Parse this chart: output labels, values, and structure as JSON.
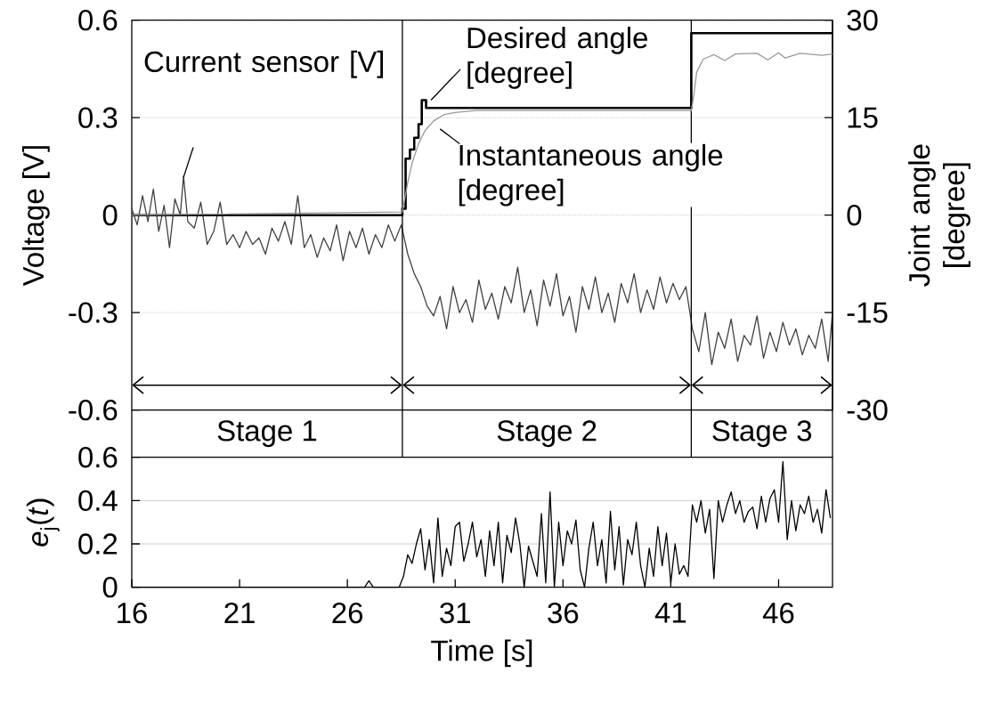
{
  "chart_data": [
    {
      "type": "line",
      "ylabel": "Voltage [V]",
      "y2label": "Joint angle [degree]",
      "xlim": [
        16,
        48.5
      ],
      "ylim": [
        -0.6,
        0.6
      ],
      "yticks": [
        0.6,
        0.3,
        0,
        -0.3,
        -0.6
      ],
      "y2lim": [
        -30,
        30
      ],
      "y2ticks": [
        30,
        15,
        0,
        -15,
        -30
      ],
      "tick_labels": "y",
      "grid": "y",
      "ref_lines": [
        {
          "axis": "x",
          "value": 28.55,
          "color": "#000000"
        },
        {
          "axis": "x",
          "value": 41.95,
          "color": "#000000"
        }
      ],
      "annotations": [
        "Current sensor [V]",
        "Desired angle [degree]",
        "Instantaneous angle [degree]",
        "Stage 1",
        "Stage 2",
        "Stage 3"
      ],
      "series": [
        {
          "color": "#404040",
          "x": [
            16.0,
            16.25,
            16.5,
            16.75,
            17.0,
            17.25,
            17.5,
            17.75,
            18.0,
            18.25,
            18.4,
            18.6,
            18.9,
            19.2,
            19.5,
            19.8,
            20.1,
            20.4,
            20.7,
            21.0,
            21.3,
            21.6,
            21.9,
            22.2,
            22.5,
            22.8,
            23.1,
            23.4,
            23.7,
            24.0,
            24.3,
            24.6,
            24.9,
            25.2,
            25.5,
            25.8,
            26.1,
            26.4,
            26.7,
            27.0,
            27.3,
            27.6,
            27.9,
            28.2,
            28.5,
            28.8,
            29.1,
            29.4,
            29.7,
            30.0,
            30.3,
            30.6,
            30.9,
            31.2,
            31.5,
            31.8,
            32.1,
            32.4,
            32.7,
            33.0,
            33.3,
            33.6,
            33.9,
            34.2,
            34.5,
            34.8,
            35.1,
            35.4,
            35.7,
            36.0,
            36.3,
            36.6,
            36.9,
            37.2,
            37.5,
            37.8,
            38.1,
            38.4,
            38.7,
            39.0,
            39.3,
            39.6,
            39.9,
            40.2,
            40.5,
            40.8,
            41.1,
            41.4,
            41.7,
            42.0,
            42.3,
            42.6,
            42.9,
            43.2,
            43.5,
            43.8,
            44.1,
            44.4,
            44.7,
            45.0,
            45.3,
            45.6,
            45.9,
            46.2,
            46.5,
            46.8,
            47.1,
            47.4,
            47.7,
            48.0,
            48.3,
            48.5
          ],
          "values": [
            0.02,
            -0.03,
            0.06,
            -0.02,
            0.08,
            -0.05,
            0.03,
            -0.1,
            0.05,
            0.0,
            0.12,
            -0.02,
            -0.04,
            0.04,
            -0.09,
            -0.05,
            0.04,
            -0.09,
            -0.06,
            -0.1,
            -0.05,
            -0.09,
            -0.07,
            -0.12,
            -0.04,
            -0.08,
            -0.02,
            -0.09,
            0.06,
            -0.1,
            -0.06,
            -0.13,
            -0.07,
            -0.11,
            -0.03,
            -0.14,
            -0.05,
            -0.1,
            -0.04,
            -0.12,
            -0.06,
            -0.1,
            -0.03,
            -0.08,
            -0.03,
            -0.12,
            -0.18,
            -0.22,
            -0.28,
            -0.31,
            -0.25,
            -0.35,
            -0.22,
            -0.3,
            -0.26,
            -0.33,
            -0.2,
            -0.29,
            -0.24,
            -0.32,
            -0.22,
            -0.27,
            -0.16,
            -0.3,
            -0.23,
            -0.34,
            -0.2,
            -0.28,
            -0.18,
            -0.31,
            -0.25,
            -0.36,
            -0.22,
            -0.29,
            -0.19,
            -0.3,
            -0.24,
            -0.33,
            -0.21,
            -0.27,
            -0.18,
            -0.3,
            -0.23,
            -0.29,
            -0.19,
            -0.27,
            -0.21,
            -0.26,
            -0.22,
            -0.35,
            -0.42,
            -0.3,
            -0.46,
            -0.36,
            -0.41,
            -0.32,
            -0.45,
            -0.37,
            -0.4,
            -0.31,
            -0.44,
            -0.36,
            -0.42,
            -0.33,
            -0.4,
            -0.35,
            -0.43,
            -0.37,
            -0.41,
            -0.32,
            -0.45,
            -0.3
          ]
        },
        {
          "type": "step",
          "axis": "y2",
          "color": "#000000",
          "x": [
            16,
            28.55,
            28.7,
            28.9,
            29.1,
            29.3,
            29.45,
            29.65,
            41.95,
            48.5
          ],
          "values": [
            0,
            1,
            8.7,
            10.1,
            11.9,
            14,
            17.7,
            16.5,
            28,
            28
          ]
        },
        {
          "axis": "y2",
          "color": "#999999",
          "x": [
            16,
            28.55,
            28.8,
            29.0,
            29.3,
            29.6,
            30.0,
            30.5,
            31.0,
            32.0,
            35.0,
            38.0,
            41.95,
            42.05,
            42.2,
            42.5,
            43.0,
            43.5,
            44.0,
            45.0,
            45.5,
            46.0,
            46.3,
            47.0,
            48.0,
            48.5
          ],
          "values": [
            0,
            0.5,
            5,
            8,
            11,
            13,
            14.5,
            15.5,
            15.8,
            16.1,
            16.1,
            16.1,
            16.1,
            18,
            22,
            24,
            24.7,
            23.8,
            24.8,
            24.9,
            23.9,
            25,
            24.2,
            24.9,
            24.6,
            24.8
          ]
        }
      ]
    },
    {
      "type": "line",
      "xlabel": "Time [s]",
      "ylabel": "*e*$_{j}$(*t*)",
      "xlim": [
        16,
        48.5
      ],
      "ylim": [
        0,
        0.6
      ],
      "xticks": [
        16,
        21,
        26,
        31,
        36,
        41,
        46
      ],
      "yticks": [
        0,
        0.2,
        0.4,
        0.6
      ],
      "grid": "y",
      "series": [
        {
          "color": "#000000",
          "x": [
            16,
            26.8,
            27.0,
            27.2,
            28.4,
            28.6,
            28.8,
            29.0,
            29.2,
            29.4,
            29.6,
            29.8,
            30.0,
            30.2,
            30.4,
            30.6,
            30.8,
            31.0,
            31.2,
            31.4,
            31.6,
            31.8,
            32.0,
            32.2,
            32.4,
            32.6,
            32.8,
            33.0,
            33.2,
            33.4,
            33.6,
            33.8,
            34.0,
            34.2,
            34.4,
            34.6,
            34.8,
            35.0,
            35.2,
            35.4,
            35.6,
            35.8,
            36.0,
            36.2,
            36.4,
            36.6,
            36.8,
            37.0,
            37.2,
            37.4,
            37.6,
            37.8,
            38.0,
            38.2,
            38.4,
            38.6,
            38.8,
            39.0,
            39.2,
            39.4,
            39.6,
            39.8,
            40.0,
            40.2,
            40.4,
            40.6,
            40.8,
            41.0,
            41.2,
            41.4,
            41.6,
            41.8,
            42.0,
            42.2,
            42.4,
            42.6,
            42.8,
            43.0,
            43.2,
            43.4,
            43.6,
            43.8,
            44.0,
            44.2,
            44.4,
            44.6,
            44.8,
            45.0,
            45.2,
            45.4,
            45.6,
            45.8,
            46.0,
            46.2,
            46.4,
            46.6,
            46.8,
            47.0,
            47.2,
            47.4,
            47.6,
            47.8,
            48.0,
            48.2,
            48.4
          ],
          "values": [
            0,
            0,
            0.03,
            0,
            0,
            0.05,
            0.15,
            0.11,
            0.2,
            0.27,
            0.08,
            0.22,
            0.02,
            0.32,
            0.05,
            0.18,
            0.1,
            0.28,
            0.3,
            0.12,
            0.2,
            0.3,
            0.14,
            0.22,
            0.05,
            0.26,
            0.1,
            0.3,
            0.02,
            0.24,
            0.16,
            0.32,
            0.2,
            0.0,
            0.19,
            0.12,
            0.05,
            0.34,
            0.02,
            0.44,
            0.0,
            0.3,
            0.1,
            0.26,
            0.2,
            0.31,
            0.08,
            0.0,
            0.18,
            0.3,
            0.1,
            0.22,
            0.02,
            0.35,
            0.08,
            0.28,
            0.01,
            0.22,
            0.15,
            0.3,
            0.1,
            0.0,
            0.18,
            0.05,
            0.28,
            0.1,
            0.25,
            0.02,
            0.2,
            0.06,
            0.1,
            0.05,
            0.38,
            0.3,
            0.4,
            0.25,
            0.36,
            0.04,
            0.4,
            0.3,
            0.38,
            0.44,
            0.34,
            0.4,
            0.3,
            0.35,
            0.37,
            0.27,
            0.42,
            0.3,
            0.41,
            0.45,
            0.3,
            0.58,
            0.22,
            0.4,
            0.26,
            0.38,
            0.34,
            0.42,
            0.3,
            0.36,
            0.25,
            0.45,
            0.32
          ]
        }
      ]
    }
  ]
}
